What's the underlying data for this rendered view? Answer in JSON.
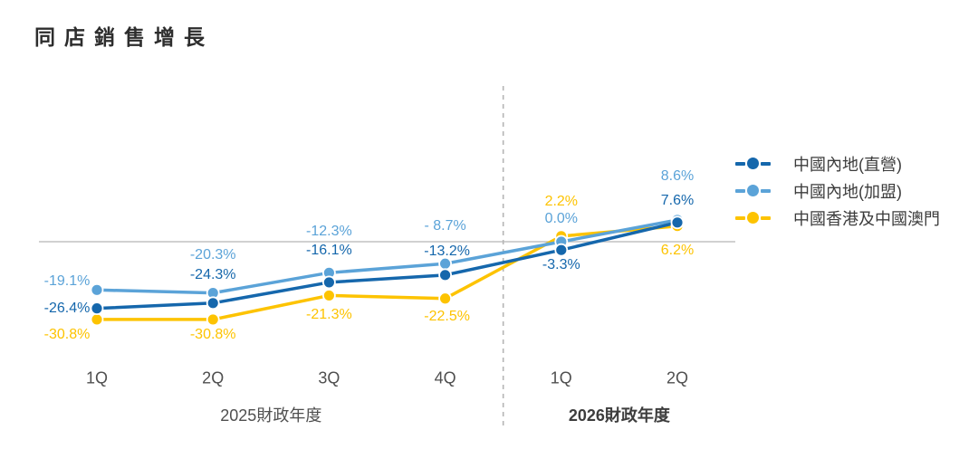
{
  "title": "同店銷售增長",
  "colors": {
    "direct_blue": "#1567ac",
    "franchise_blue": "#5ba3d8",
    "hk_macau_yellow": "#fdc300",
    "zero_line": "#c2c2c2",
    "divider": "#b5b5b5",
    "axis_text": "#4f4f4f",
    "title_text": "#2d2d2d"
  },
  "chart_data": {
    "type": "line",
    "categories": [
      "1Q",
      "2Q",
      "3Q",
      "4Q",
      "1Q",
      "2Q"
    ],
    "series": [
      {
        "name": "中國內地(直營)",
        "color": "#1567ac",
        "values": [
          -26.4,
          -24.3,
          -16.1,
          -13.2,
          -3.3,
          7.6
        ],
        "labels": [
          "-26.4%",
          "-24.3%",
          "-16.1%",
          "-13.2%",
          "-3.3%",
          "7.6%"
        ]
      },
      {
        "name": "中國內地(加盟)",
        "color": "#5ba3d8",
        "values": [
          -19.1,
          -20.3,
          -12.3,
          -8.7,
          0.0,
          8.6
        ],
        "labels": [
          "-19.1%",
          "-20.3%",
          "-12.3%",
          "- 8.7%",
          "0.0%",
          "8.6%"
        ]
      },
      {
        "name": "中國香港及中國澳門",
        "color": "#fdc300",
        "values": [
          -30.8,
          -30.8,
          -21.3,
          -22.5,
          2.2,
          6.2
        ],
        "labels": [
          "-30.8%",
          "-30.8%",
          "-21.3%",
          "-22.5%",
          "2.2%",
          "6.2%"
        ]
      }
    ],
    "x_groups": [
      {
        "label": "2025財政年度",
        "span": [
          0,
          3
        ],
        "bold": false
      },
      {
        "label": "2026財政年度",
        "span": [
          4,
          5
        ],
        "bold": true
      }
    ],
    "ylim": [
      -35,
      12
    ],
    "zero_line": true,
    "divider_between": [
      3,
      4
    ],
    "legend_position": "right",
    "grid": false
  }
}
